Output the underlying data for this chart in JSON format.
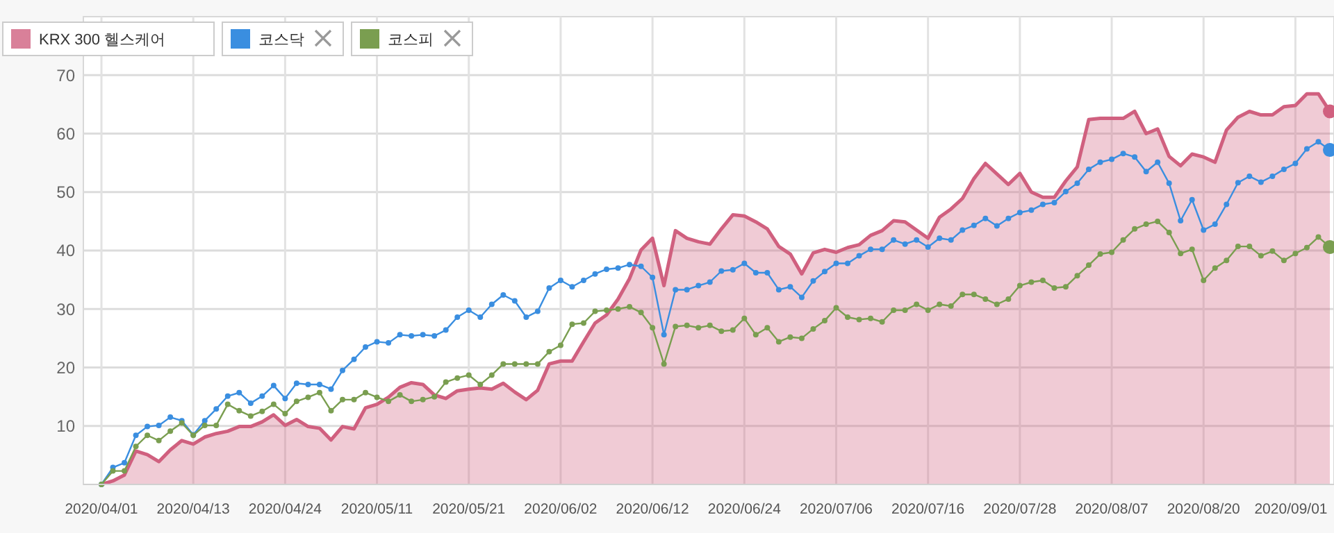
{
  "chart_data": {
    "type": "area",
    "categories": [
      "2020/04/01",
      null,
      null,
      null,
      null,
      null,
      null,
      null,
      "2020/04/13",
      null,
      null,
      null,
      null,
      null,
      null,
      null,
      "2020/04/24",
      null,
      null,
      null,
      null,
      null,
      null,
      null,
      "2020/05/11",
      null,
      null,
      null,
      null,
      null,
      null,
      null,
      "2020/05/21",
      null,
      null,
      null,
      null,
      null,
      null,
      null,
      "2020/06/02",
      null,
      null,
      null,
      null,
      null,
      null,
      null,
      "2020/06/12",
      null,
      null,
      null,
      null,
      null,
      null,
      null,
      "2020/06/24",
      null,
      null,
      null,
      null,
      null,
      null,
      null,
      "2020/07/06",
      null,
      null,
      null,
      null,
      null,
      null,
      null,
      "2020/07/16",
      null,
      null,
      null,
      null,
      null,
      null,
      null,
      "2020/07/28",
      null,
      null,
      null,
      null,
      null,
      null,
      null,
      "2020/08/07",
      null,
      null,
      null,
      null,
      null,
      null,
      null,
      "2020/08/20",
      null,
      null,
      null,
      null,
      null,
      null,
      null,
      "2020/09/01",
      null,
      null,
      null
    ],
    "series": [
      {
        "name": "KRX 300 헬스케어",
        "marker": "none",
        "color": "#d0607f",
        "values": [
          0,
          0.6,
          1.6,
          5.7,
          5.1,
          3.9,
          5.9,
          7.5,
          6.9,
          8.1,
          8.7,
          9.1,
          9.9,
          9.9,
          10.7,
          11.9,
          10.1,
          11.1,
          9.9,
          9.6,
          7.6,
          9.9,
          9.5,
          13.1,
          13.7,
          14.9,
          16.6,
          17.4,
          17.1,
          15.3,
          14.7,
          16.0,
          16.3,
          16.5,
          16.3,
          17.3,
          15.8,
          14.5,
          16.1,
          20.6,
          21.1,
          21.1,
          24.4,
          27.6,
          29.0,
          31.7,
          35.2,
          40.1,
          42.1,
          34.0,
          43.4,
          42.1,
          41.5,
          41.1,
          43.7,
          46.1,
          45.9,
          44.9,
          43.7,
          40.7,
          39.4,
          36.0,
          39.6,
          40.2,
          39.7,
          40.5,
          41.0,
          42.6,
          43.4,
          45.1,
          44.9,
          43.5,
          42.1,
          45.7,
          47.1,
          48.9,
          52.3,
          54.9,
          53.1,
          51.3,
          53.2,
          50.0,
          49.1,
          49.1,
          51.9,
          54.3,
          62.4,
          62.6,
          62.6,
          62.6,
          63.8,
          60.0,
          60.8,
          56.1,
          54.5,
          56.5,
          56.0,
          55.1,
          60.6,
          62.8,
          63.8,
          63.2,
          63.2,
          64.6,
          64.8,
          66.8,
          66.8,
          63.8
        ]
      },
      {
        "name": "코스닥",
        "type": "line",
        "color": "#3a8ee0",
        "values": [
          0,
          2.9,
          3.7,
          8.4,
          9.9,
          10.1,
          11.5,
          10.9,
          8.5,
          10.9,
          12.9,
          15.1,
          15.7,
          13.9,
          15.1,
          16.9,
          14.7,
          17.3,
          17.1,
          17.1,
          16.3,
          19.5,
          21.4,
          23.5,
          24.4,
          24.2,
          25.6,
          25.4,
          25.6,
          25.4,
          26.4,
          28.6,
          29.8,
          28.6,
          30.8,
          32.4,
          31.4,
          28.6,
          29.6,
          33.6,
          34.9,
          33.8,
          34.9,
          36.0,
          36.8,
          37.0,
          37.6,
          37.3,
          35.4,
          25.6,
          33.3,
          33.3,
          34.0,
          34.6,
          36.5,
          36.7,
          37.8,
          36.2,
          36.2,
          33.3,
          33.8,
          32.0,
          34.8,
          36.4,
          37.8,
          37.8,
          39.1,
          40.2,
          40.2,
          41.8,
          41.1,
          41.8,
          40.6,
          42.1,
          41.8,
          43.5,
          44.3,
          45.5,
          44.2,
          45.5,
          46.5,
          46.9,
          47.9,
          48.2,
          50.1,
          51.5,
          53.9,
          55.1,
          55.6,
          56.6,
          56.0,
          53.5,
          55.1,
          51.5,
          45.1,
          48.7,
          43.5,
          44.5,
          47.9,
          51.6,
          52.7,
          51.7,
          52.7,
          53.9,
          54.9,
          57.4,
          58.6,
          57.2
        ]
      },
      {
        "name": "코스피",
        "type": "line",
        "color": "#7a9e50",
        "values": [
          0,
          2.3,
          2.3,
          6.5,
          8.4,
          7.5,
          9.1,
          10.5,
          8.4,
          10.1,
          10.1,
          13.7,
          12.6,
          11.7,
          12.5,
          13.7,
          12.1,
          14.2,
          14.9,
          15.7,
          12.6,
          14.5,
          14.5,
          15.7,
          14.9,
          14.2,
          15.3,
          14.2,
          14.5,
          15.0,
          17.5,
          18.2,
          18.7,
          17.1,
          18.7,
          20.6,
          20.6,
          20.6,
          20.6,
          22.7,
          23.8,
          27.4,
          27.6,
          29.6,
          29.8,
          30.0,
          30.4,
          29.4,
          26.8,
          20.6,
          27.0,
          27.2,
          26.8,
          27.2,
          26.2,
          26.4,
          28.4,
          25.6,
          26.8,
          24.4,
          25.2,
          25.0,
          26.6,
          28.0,
          30.2,
          28.6,
          28.2,
          28.4,
          27.8,
          29.8,
          29.8,
          30.8,
          29.8,
          30.8,
          30.5,
          32.5,
          32.5,
          31.7,
          30.8,
          31.7,
          34.0,
          34.6,
          34.9,
          33.6,
          33.8,
          35.7,
          37.5,
          39.4,
          39.7,
          41.8,
          43.7,
          44.5,
          45.0,
          43.1,
          39.5,
          40.2,
          34.9,
          37.0,
          38.3,
          40.7,
          40.7,
          39.1,
          39.9,
          38.3,
          39.5,
          40.5,
          42.3,
          40.6
        ]
      }
    ],
    "ylim": [
      0,
      80
    ],
    "yticks": [
      10,
      20,
      30,
      40,
      50,
      60,
      70
    ],
    "grid": true,
    "legend": "top left",
    "marker": "circle"
  }
}
